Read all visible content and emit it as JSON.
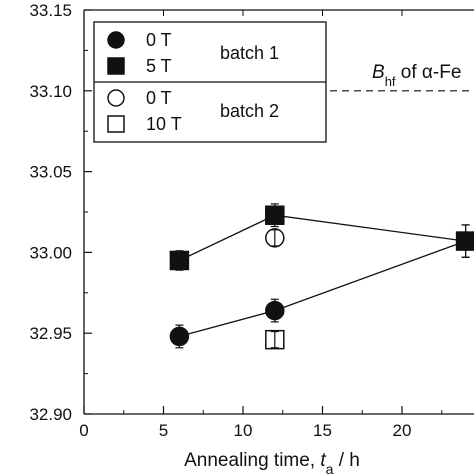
{
  "chart_data": {
    "type": "scatter",
    "xlabel": {
      "prefix": "Annealing time, ",
      "var": "t",
      "sub": "a",
      "suffix": " / h"
    },
    "ylabel": "",
    "xlim": [
      0,
      25
    ],
    "ylim": [
      32.9,
      33.15
    ],
    "x_ticks": [
      "0",
      "5",
      "10",
      "15",
      "20"
    ],
    "y_ticks": [
      "32.90",
      "32.95",
      "33.00",
      "33.05",
      "33.10",
      "33.15"
    ],
    "series": [
      {
        "name": "0 T",
        "group": "batch 1",
        "marker": "filled-circle",
        "connected": true,
        "points": [
          {
            "x": 6,
            "y": 32.948,
            "err": 0.007
          },
          {
            "x": 12,
            "y": 32.964,
            "err": 0.007
          },
          {
            "x": 24,
            "y": 33.007,
            "err": 0.01
          }
        ]
      },
      {
        "name": "5 T",
        "group": "batch 1",
        "marker": "filled-square",
        "connected": true,
        "points": [
          {
            "x": 6,
            "y": 32.995,
            "err": 0.006
          },
          {
            "x": 12,
            "y": 33.023,
            "err": 0.007
          },
          {
            "x": 24,
            "y": 33.007,
            "err": 0.01
          }
        ]
      },
      {
        "name": "0 T",
        "group": "batch 2",
        "marker": "open-circle",
        "connected": false,
        "points": [
          {
            "x": 12,
            "y": 33.009,
            "err": 0.005
          }
        ]
      },
      {
        "name": "10 T",
        "group": "batch 2",
        "marker": "open-square",
        "connected": false,
        "points": [
          {
            "x": 12,
            "y": 32.946,
            "err": 0.005
          }
        ]
      }
    ],
    "legend": {
      "placement": "top-left",
      "groups": [
        "batch 1",
        "batch 2"
      ]
    },
    "reference_line": {
      "y": 33.1,
      "style": "dashed",
      "label_prefix": "B",
      "label_sub": "hf",
      "label_suffix": " of α-Fe"
    }
  }
}
